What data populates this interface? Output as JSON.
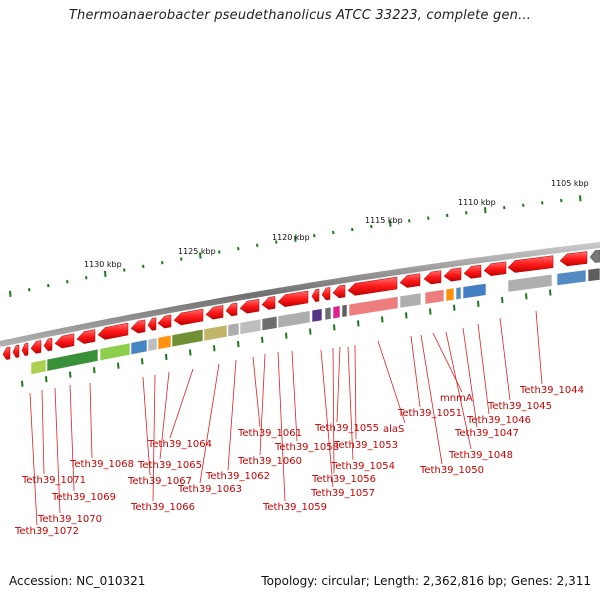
{
  "title": "Thermoanaerobacter pseudethanolicus ATCC 33223, complete gen...",
  "accession": "Accession: NC_010321",
  "summary": "Topology: circular; Length: 2,362,816 bp; Genes: 2,311",
  "scale_labels": [
    {
      "text": "1105 kbp"
    },
    {
      "text": "1110 kbp"
    },
    {
      "text": "1115 kbp"
    },
    {
      "text": "1120 kbp"
    },
    {
      "text": "1125 kbp"
    },
    {
      "text": "1130 kbp"
    }
  ],
  "gene_labels": [
    "Teth39_1044",
    "Teth39_1045",
    "Teth39_1046",
    "Teth39_1047",
    "Teth39_1048",
    "mnmA",
    "Teth39_1050",
    "Teth39_1051",
    "alaS",
    "Teth39_1053",
    "Teth39_1054",
    "Teth39_1055",
    "Teth39_1056",
    "Teth39_1057",
    "Teth39_1058",
    "Teth39_1059",
    "Teth39_1060",
    "Teth39_1061",
    "Teth39_1062",
    "Teth39_1063",
    "Teth39_1064",
    "Teth39_1065",
    "Teth39_1066",
    "Teth39_1067",
    "Teth39_1068",
    "Teth39_1069",
    "Teth39_1070",
    "Teth39_1071",
    "Teth39_1072"
  ],
  "colors": {
    "gene_forward": "#ff2020",
    "leader_line": "#e02020",
    "label_text": "#cc0000",
    "backbone": "#8a8a8a",
    "scale_tick": "#1a7a1a"
  }
}
